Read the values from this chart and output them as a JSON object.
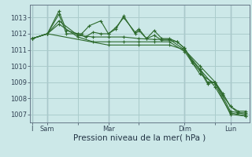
{
  "bg_color": "#cce8e8",
  "grid_color": "#aacccc",
  "line_color": "#2d6a2d",
  "marker_color": "#2d6a2d",
  "xlabel": "Pression niveau de la mer( hPa )",
  "xlabel_fontsize": 7.5,
  "ylabel_fontsize": 6,
  "ylim": [
    1006.5,
    1013.8
  ],
  "yticks": [
    1007,
    1008,
    1009,
    1010,
    1011,
    1012,
    1013
  ],
  "xtick_labels": [
    "I",
    "Sam",
    "",
    "Mar",
    "",
    "Dim",
    "",
    "Lun"
  ],
  "xtick_positions": [
    0,
    8,
    24,
    40,
    56,
    80,
    96,
    104
  ],
  "vlines": [
    0,
    8,
    40,
    80,
    104
  ],
  "series": [
    {
      "x": [
        0,
        8,
        14,
        18,
        24,
        26,
        30,
        36,
        40,
        44,
        48,
        54,
        56,
        60,
        64,
        68,
        72,
        76,
        80,
        84,
        88,
        92,
        96,
        100,
        104,
        108,
        112
      ],
      "y": [
        1011.7,
        1012.0,
        1013.4,
        1012.2,
        1012.0,
        1012.0,
        1012.5,
        1012.8,
        1012.0,
        1012.4,
        1013.0,
        1012.1,
        1012.3,
        1011.7,
        1012.2,
        1011.7,
        1011.7,
        1011.5,
        1011.1,
        1010.3,
        1009.8,
        1009.0,
        1009.0,
        1008.3,
        1007.5,
        1007.2,
        1007.2
      ]
    },
    {
      "x": [
        0,
        8,
        14,
        18,
        24,
        28,
        32,
        36,
        40,
        44,
        48,
        54,
        56,
        60,
        64,
        68,
        72,
        76,
        80,
        84,
        88,
        92,
        96,
        100,
        104,
        108,
        112
      ],
      "y": [
        1011.7,
        1012.0,
        1013.2,
        1012.0,
        1012.0,
        1011.8,
        1012.1,
        1012.0,
        1012.0,
        1012.3,
        1013.1,
        1012.0,
        1012.2,
        1011.7,
        1011.9,
        1011.6,
        1011.6,
        1011.5,
        1011.1,
        1010.2,
        1009.7,
        1008.9,
        1009.0,
        1008.2,
        1007.5,
        1007.1,
        1007.1
      ]
    },
    {
      "x": [
        0,
        8,
        14,
        24,
        32,
        40,
        48,
        56,
        64,
        72,
        80,
        88,
        96,
        104,
        112
      ],
      "y": [
        1011.7,
        1012.0,
        1012.8,
        1011.9,
        1011.8,
        1011.8,
        1011.8,
        1011.7,
        1011.65,
        1011.65,
        1011.0,
        1010.0,
        1009.0,
        1007.2,
        1007.0
      ]
    },
    {
      "x": [
        0,
        8,
        14,
        24,
        32,
        40,
        48,
        56,
        64,
        72,
        80,
        88,
        96,
        104,
        112
      ],
      "y": [
        1011.7,
        1012.0,
        1012.6,
        1011.8,
        1011.5,
        1011.5,
        1011.5,
        1011.5,
        1011.5,
        1011.5,
        1010.9,
        1009.5,
        1008.9,
        1007.0,
        1006.9
      ]
    },
    {
      "x": [
        0,
        8,
        40,
        56,
        72,
        80,
        88,
        96,
        104,
        112
      ],
      "y": [
        1011.7,
        1012.0,
        1011.3,
        1011.3,
        1011.3,
        1011.0,
        1009.8,
        1008.7,
        1007.1,
        1006.9
      ]
    }
  ]
}
